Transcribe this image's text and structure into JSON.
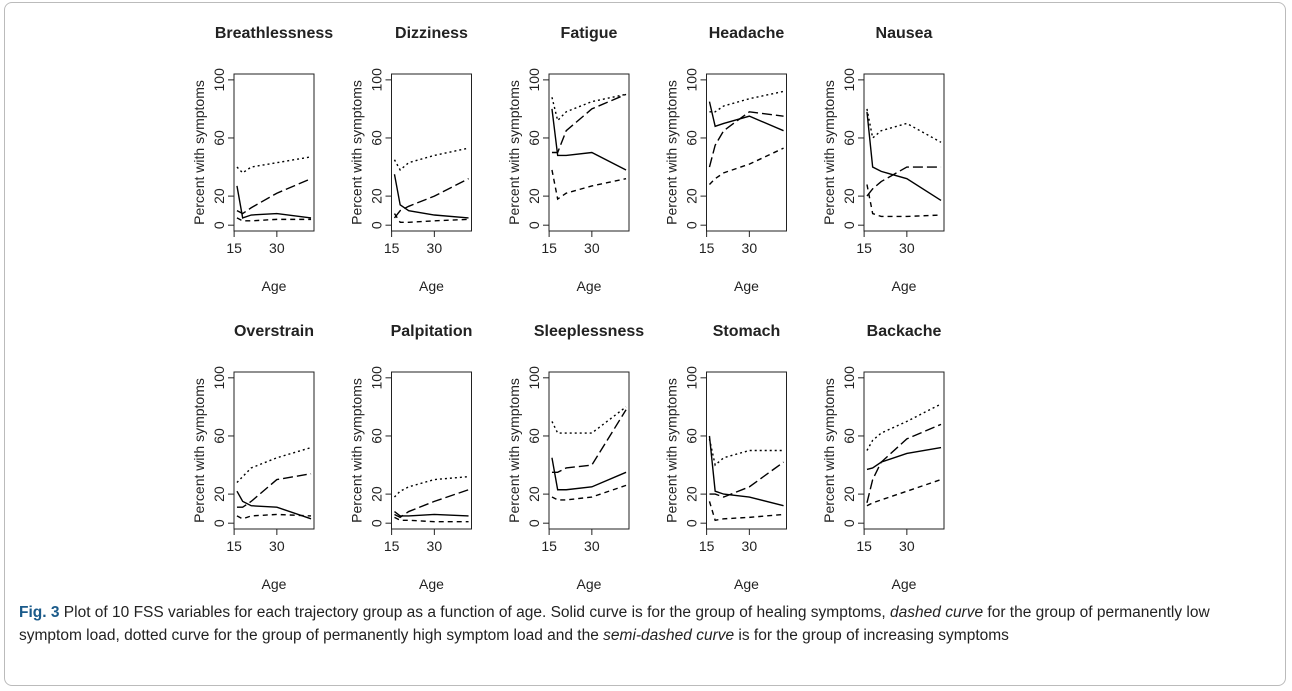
{
  "chart_data": [
    {
      "type": "line",
      "title": "Breathlessness",
      "xlabel": "Age",
      "ylabel": "Percent with symptoms",
      "x": [
        16,
        18,
        21,
        30,
        42
      ],
      "xlim": [
        14.96,
        43.04
      ],
      "xticks": [
        15,
        30
      ],
      "ylim": [
        -4,
        104
      ],
      "yticks": [
        0,
        20,
        60,
        100
      ],
      "series": [
        {
          "color": "#000",
          "dash": "none",
          "values": [
            27,
            5,
            7,
            8,
            5
          ]
        },
        {
          "color": "#000",
          "dash": "5,4",
          "values": [
            5,
            3,
            3,
            4,
            4
          ]
        },
        {
          "color": "#000",
          "dash": "2,3",
          "values": [
            40,
            36,
            40,
            43,
            47
          ]
        },
        {
          "color": "#000",
          "dash": "10,4",
          "values": [
            10,
            8,
            12,
            22,
            32
          ]
        }
      ]
    },
    {
      "type": "line",
      "title": "Dizziness",
      "xlabel": "Age",
      "ylabel": "Percent with symptoms",
      "x": [
        16,
        18,
        21,
        30,
        42
      ],
      "xlim": [
        14.96,
        43.04
      ],
      "xticks": [
        15,
        30
      ],
      "ylim": [
        -4,
        104
      ],
      "yticks": [
        0,
        20,
        60,
        100
      ],
      "series": [
        {
          "color": "#000",
          "dash": "none",
          "values": [
            35,
            14,
            10,
            7,
            5
          ]
        },
        {
          "color": "#000",
          "dash": "5,4",
          "values": [
            8,
            2,
            2,
            3,
            4
          ]
        },
        {
          "color": "#000",
          "dash": "2,3",
          "values": [
            45,
            38,
            43,
            48,
            53
          ]
        },
        {
          "color": "#000",
          "dash": "10,4",
          "values": [
            5,
            10,
            13,
            20,
            32
          ]
        }
      ]
    },
    {
      "type": "line",
      "title": "Fatigue",
      "xlabel": "Age",
      "ylabel": "Percent with symptoms",
      "x": [
        16,
        18,
        21,
        30,
        42
      ],
      "xlim": [
        14.96,
        43.04
      ],
      "xticks": [
        15,
        30
      ],
      "ylim": [
        -4,
        104
      ],
      "yticks": [
        0,
        20,
        60,
        100
      ],
      "series": [
        {
          "color": "#000",
          "dash": "none",
          "values": [
            80,
            48,
            48,
            50,
            38
          ]
        },
        {
          "color": "#000",
          "dash": "5,4",
          "values": [
            38,
            18,
            22,
            27,
            32
          ]
        },
        {
          "color": "#000",
          "dash": "2,3",
          "values": [
            88,
            72,
            78,
            85,
            90
          ]
        },
        {
          "color": "#000",
          "dash": "10,4",
          "values": [
            50,
            50,
            65,
            80,
            90
          ]
        }
      ]
    },
    {
      "type": "line",
      "title": "Headache",
      "xlabel": "Age",
      "ylabel": "Percent with symptoms",
      "x": [
        16,
        18,
        21,
        30,
        42
      ],
      "xlim": [
        14.96,
        43.04
      ],
      "xticks": [
        15,
        30
      ],
      "ylim": [
        -4,
        104
      ],
      "yticks": [
        0,
        20,
        60,
        100
      ],
      "series": [
        {
          "color": "#000",
          "dash": "none",
          "values": [
            85,
            68,
            70,
            75,
            65
          ]
        },
        {
          "color": "#000",
          "dash": "5,4",
          "values": [
            28,
            32,
            36,
            42,
            53
          ]
        },
        {
          "color": "#000",
          "dash": "2,3",
          "values": [
            78,
            78,
            82,
            87,
            92
          ]
        },
        {
          "color": "#000",
          "dash": "10,4",
          "values": [
            40,
            55,
            65,
            78,
            75
          ]
        }
      ]
    },
    {
      "type": "line",
      "title": "Nausea",
      "xlabel": "Age",
      "ylabel": "Percent with symptoms",
      "x": [
        16,
        18,
        21,
        30,
        42
      ],
      "xlim": [
        14.96,
        43.04
      ],
      "xticks": [
        15,
        30
      ],
      "ylim": [
        -4,
        104
      ],
      "yticks": [
        0,
        20,
        60,
        100
      ],
      "series": [
        {
          "color": "#000",
          "dash": "none",
          "values": [
            78,
            40,
            37,
            32,
            17
          ]
        },
        {
          "color": "#000",
          "dash": "5,4",
          "values": [
            28,
            8,
            6,
            6,
            7
          ]
        },
        {
          "color": "#000",
          "dash": "2,3",
          "values": [
            80,
            60,
            65,
            70,
            57
          ]
        },
        {
          "color": "#000",
          "dash": "10,4",
          "values": [
            20,
            25,
            30,
            40,
            40
          ]
        }
      ]
    },
    {
      "type": "line",
      "title": "Overstrain",
      "xlabel": "Age",
      "ylabel": "Percent with symptoms",
      "x": [
        16,
        18,
        21,
        30,
        42
      ],
      "xlim": [
        14.96,
        43.04
      ],
      "xticks": [
        15,
        30
      ],
      "ylim": [
        -4,
        104
      ],
      "yticks": [
        0,
        20,
        60,
        100
      ],
      "series": [
        {
          "color": "#000",
          "dash": "none",
          "values": [
            22,
            15,
            12,
            11,
            3
          ]
        },
        {
          "color": "#000",
          "dash": "5,4",
          "values": [
            5,
            3,
            5,
            6,
            5
          ]
        },
        {
          "color": "#000",
          "dash": "2,3",
          "values": [
            28,
            32,
            38,
            45,
            52
          ]
        },
        {
          "color": "#000",
          "dash": "10,4",
          "values": [
            11,
            11,
            15,
            30,
            34
          ]
        }
      ]
    },
    {
      "type": "line",
      "title": "Palpitation",
      "xlabel": "Age",
      "ylabel": "Percent with symptoms",
      "x": [
        16,
        18,
        21,
        30,
        42
      ],
      "xlim": [
        14.96,
        43.04
      ],
      "xticks": [
        15,
        30
      ],
      "ylim": [
        -4,
        104
      ],
      "yticks": [
        0,
        20,
        60,
        100
      ],
      "series": [
        {
          "color": "#000",
          "dash": "none",
          "values": [
            8,
            5,
            5,
            6,
            5
          ]
        },
        {
          "color": "#000",
          "dash": "5,4",
          "values": [
            4,
            2,
            2,
            1,
            1
          ]
        },
        {
          "color": "#000",
          "dash": "2,3",
          "values": [
            18,
            22,
            25,
            30,
            32
          ]
        },
        {
          "color": "#000",
          "dash": "10,4",
          "values": [
            6,
            4,
            8,
            15,
            23
          ]
        }
      ]
    },
    {
      "type": "line",
      "title": "Sleeplessness",
      "xlabel": "Age",
      "ylabel": "Percent with symptoms",
      "x": [
        16,
        18,
        21,
        30,
        42
      ],
      "xlim": [
        14.96,
        43.04
      ],
      "xticks": [
        15,
        30
      ],
      "ylim": [
        -4,
        104
      ],
      "yticks": [
        0,
        20,
        60,
        100
      ],
      "series": [
        {
          "color": "#000",
          "dash": "none",
          "values": [
            45,
            23,
            23,
            25,
            35
          ]
        },
        {
          "color": "#000",
          "dash": "5,4",
          "values": [
            18,
            16,
            16,
            18,
            26
          ]
        },
        {
          "color": "#000",
          "dash": "2,3",
          "values": [
            70,
            62,
            62,
            62,
            80
          ]
        },
        {
          "color": "#000",
          "dash": "10,4",
          "values": [
            35,
            35,
            38,
            40,
            78
          ]
        }
      ]
    },
    {
      "type": "line",
      "title": "Stomach",
      "xlabel": "Age",
      "ylabel": "Percent with symptoms",
      "x": [
        16,
        18,
        21,
        30,
        42
      ],
      "xlim": [
        14.96,
        43.04
      ],
      "xticks": [
        15,
        30
      ],
      "ylim": [
        -4,
        104
      ],
      "yticks": [
        0,
        20,
        60,
        100
      ],
      "series": [
        {
          "color": "#000",
          "dash": "none",
          "values": [
            60,
            22,
            20,
            18,
            12
          ]
        },
        {
          "color": "#000",
          "dash": "5,4",
          "values": [
            15,
            2,
            3,
            4,
            6
          ]
        },
        {
          "color": "#000",
          "dash": "2,3",
          "values": [
            58,
            40,
            45,
            50,
            50
          ]
        },
        {
          "color": "#000",
          "dash": "10,4",
          "values": [
            20,
            20,
            18,
            25,
            42
          ]
        }
      ]
    },
    {
      "type": "line",
      "title": "Backache",
      "xlabel": "Age",
      "ylabel": "Percent with symptoms",
      "x": [
        16,
        18,
        21,
        30,
        42
      ],
      "xlim": [
        14.96,
        43.04
      ],
      "xticks": [
        15,
        30
      ],
      "ylim": [
        -4,
        104
      ],
      "yticks": [
        0,
        20,
        60,
        100
      ],
      "series": [
        {
          "color": "#000",
          "dash": "none",
          "values": [
            37,
            38,
            42,
            48,
            52
          ]
        },
        {
          "color": "#000",
          "dash": "5,4",
          "values": [
            12,
            14,
            16,
            22,
            30
          ]
        },
        {
          "color": "#000",
          "dash": "2,3",
          "values": [
            50,
            57,
            62,
            70,
            82
          ]
        },
        {
          "color": "#000",
          "dash": "10,4",
          "values": [
            14,
            30,
            42,
            58,
            68
          ]
        }
      ]
    }
  ],
  "caption": [
    {
      "text": "Fig. 3",
      "style": "bold"
    },
    {
      "text": " Plot of 10 FSS variables for each trajectory group as a function of age. Solid curve is for the group of healing symptoms, ",
      "style": "normal"
    },
    {
      "text": "dashed curve",
      "style": "italic"
    },
    {
      "text": " for the group of permanently low symptom load, dotted curve for the group of permanently high symptom load and the ",
      "style": "normal"
    },
    {
      "text": "semi-dashed curve",
      "style": "italic"
    },
    {
      "text": " is for the group of increasing symptoms",
      "style": "normal"
    }
  ]
}
